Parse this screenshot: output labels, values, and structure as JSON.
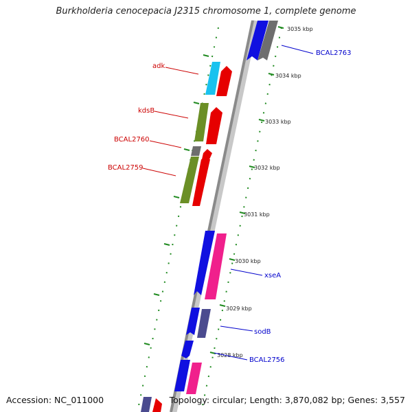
{
  "title": "Burkholderia cenocepacia J2315 chromosome 1, complete genome",
  "accession": "Accession: NC_011000",
  "topology": "Topology: circular; Length: 3,870,082 bp; Genes: 3,557",
  "colors": {
    "backbone": "#8a8a8a",
    "dots": "#1f8a1f",
    "red": "#e60000",
    "blue": "#1010e0",
    "cyan": "#19c2ef",
    "olive": "#6b8f26",
    "magenta": "#f0208c",
    "slate": "#4b4b8f",
    "gray": "#6e6e6e",
    "red_label": "#cc0000",
    "blue_label": "#0000cc"
  },
  "ticks": [
    "3035 kbp",
    "3034 kbp",
    "3033 kbp",
    "3032 kbp",
    "3031 kbp",
    "3030 kbp",
    "3029 kbp",
    "3028 kbp"
  ],
  "labels_left": [
    "adk",
    "kdsB",
    "BCAL2760",
    "BCAL2759"
  ],
  "labels_right": [
    "BCAL2763",
    "xseA",
    "sodB",
    "BCAL2756"
  ]
}
